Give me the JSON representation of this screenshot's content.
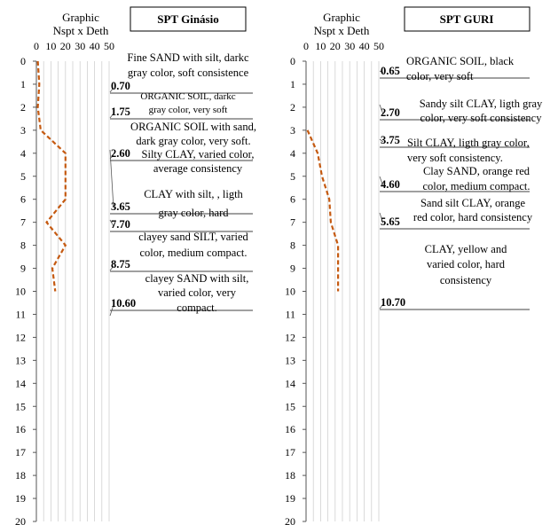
{
  "chart_data": [
    {
      "type": "line",
      "title": "SPT Ginásio",
      "axis_title": [
        "Graphic",
        "Nspt x Deth"
      ],
      "x_ticks": [
        "0",
        "10",
        "20",
        "30",
        "40",
        "50"
      ],
      "xlim": [
        0,
        50
      ],
      "ylim": [
        0,
        20
      ],
      "y_ticks": [
        "0",
        "1",
        "2",
        "3",
        "4",
        "5",
        "6",
        "7",
        "8",
        "9",
        "10",
        "11",
        "12",
        "13",
        "14",
        "15",
        "16",
        "17",
        "18",
        "19",
        "20"
      ],
      "grid": true,
      "series": [
        {
          "color": "#C55A11",
          "points": [
            [
              1,
              0
            ],
            [
              2,
              1
            ],
            [
              1,
              2
            ],
            [
              3,
              3
            ],
            [
              20,
              4
            ],
            [
              20,
              5
            ],
            [
              20,
              6
            ],
            [
              7,
              7
            ],
            [
              20,
              8
            ],
            [
              11,
              9
            ],
            [
              13,
              10
            ]
          ]
        }
      ],
      "layers": [
        {
          "depth": "0.70",
          "lines": [
            "Fine SAND with silt, darkc",
            "gray color, soft consistence"
          ]
        },
        {
          "depth": "1.75",
          "lines": [
            "ORGANIC SOIL, darkc",
            "gray color, very soft"
          ]
        },
        {
          "depth": "2.60",
          "lines": [
            "ORGANIC SOIL with sand,",
            "dark gray color, very soft."
          ]
        },
        {
          "depth": "3.65",
          "lines": [
            "Silty CLAY, varied color,",
            "average consistency"
          ]
        },
        {
          "depth": "7.70",
          "lines": [
            "CLAY with silt, , ligth",
            "gray color, hard"
          ]
        },
        {
          "depth": "8.75",
          "lines": [
            "clayey sand SILT, varied",
            "color, medium compact."
          ]
        },
        {
          "depth": "10.60",
          "lines": [
            "clayey SAND with silt,",
            "varied color, very",
            "compact."
          ]
        }
      ]
    },
    {
      "type": "line",
      "title": "SPT GURI",
      "axis_title": [
        "Graphic",
        "Nspt x Deth"
      ],
      "x_ticks": [
        "0",
        "10",
        "20",
        "30",
        "40",
        "50"
      ],
      "xlim": [
        0,
        50
      ],
      "ylim": [
        0,
        20
      ],
      "y_ticks": [
        "0",
        "1",
        "2",
        "3",
        "4",
        "5",
        "6",
        "7",
        "8",
        "9",
        "10",
        "11",
        "12",
        "13",
        "14",
        "15",
        "16",
        "17",
        "18",
        "19",
        "20"
      ],
      "grid": true,
      "series": [
        {
          "color": "#C55A11",
          "points": [
            [
              1,
              3
            ],
            [
              8,
              4
            ],
            [
              11,
              5
            ],
            [
              16,
              6
            ],
            [
              17,
              7
            ],
            [
              22,
              8
            ],
            [
              22,
              9
            ],
            [
              22,
              10
            ]
          ]
        }
      ],
      "layers": [
        {
          "depth": "0.65",
          "lines": [
            "ORGANIC SOIL, black",
            "color, very soft"
          ]
        },
        {
          "depth": "2.70",
          "lines": [
            "Sandy silt CLAY, ligth gray",
            "color, very soft consistency"
          ]
        },
        {
          "depth": "3.75",
          "lines": [
            "Silt CLAY, ligth gray color,",
            "very soft consistency."
          ]
        },
        {
          "depth": "4.60",
          "lines": [
            "Clay SAND, orange red",
            "color, medium compact."
          ]
        },
        {
          "depth": "5.65",
          "lines": [
            "Sand silt CLAY, orange",
            "red color, hard consistency"
          ]
        },
        {
          "depth": "10.70",
          "lines": [
            "CLAY, yellow and",
            "varied color, hard",
            "consistency"
          ]
        }
      ]
    }
  ]
}
